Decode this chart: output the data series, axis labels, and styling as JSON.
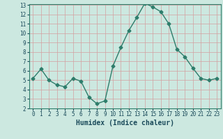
{
  "x": [
    0,
    1,
    2,
    3,
    4,
    5,
    6,
    7,
    8,
    9,
    10,
    11,
    12,
    13,
    14,
    15,
    16,
    17,
    18,
    19,
    20,
    21,
    22,
    23
  ],
  "y": [
    5.2,
    6.2,
    5.0,
    4.5,
    4.3,
    5.2,
    4.9,
    3.2,
    2.5,
    2.8,
    6.5,
    8.5,
    10.3,
    11.7,
    13.2,
    12.8,
    12.3,
    11.0,
    8.3,
    7.5,
    6.3,
    5.2,
    5.0,
    5.2
  ],
  "xlabel": "Humidex (Indice chaleur)",
  "ylim": [
    2,
    13
  ],
  "xlim": [
    -0.5,
    23.5
  ],
  "yticks": [
    2,
    3,
    4,
    5,
    6,
    7,
    8,
    9,
    10,
    11,
    12,
    13
  ],
  "xticks": [
    0,
    1,
    2,
    3,
    4,
    5,
    6,
    7,
    8,
    9,
    10,
    11,
    12,
    13,
    14,
    15,
    16,
    17,
    18,
    19,
    20,
    21,
    22,
    23
  ],
  "line_color": "#2E7D6B",
  "marker": "D",
  "marker_size": 2.5,
  "bg_color": "#CCE8E0",
  "grid_color": "#D4A0A0",
  "text_color": "#1a4a5a",
  "xlabel_fontsize": 7,
  "tick_fontsize": 5.5
}
